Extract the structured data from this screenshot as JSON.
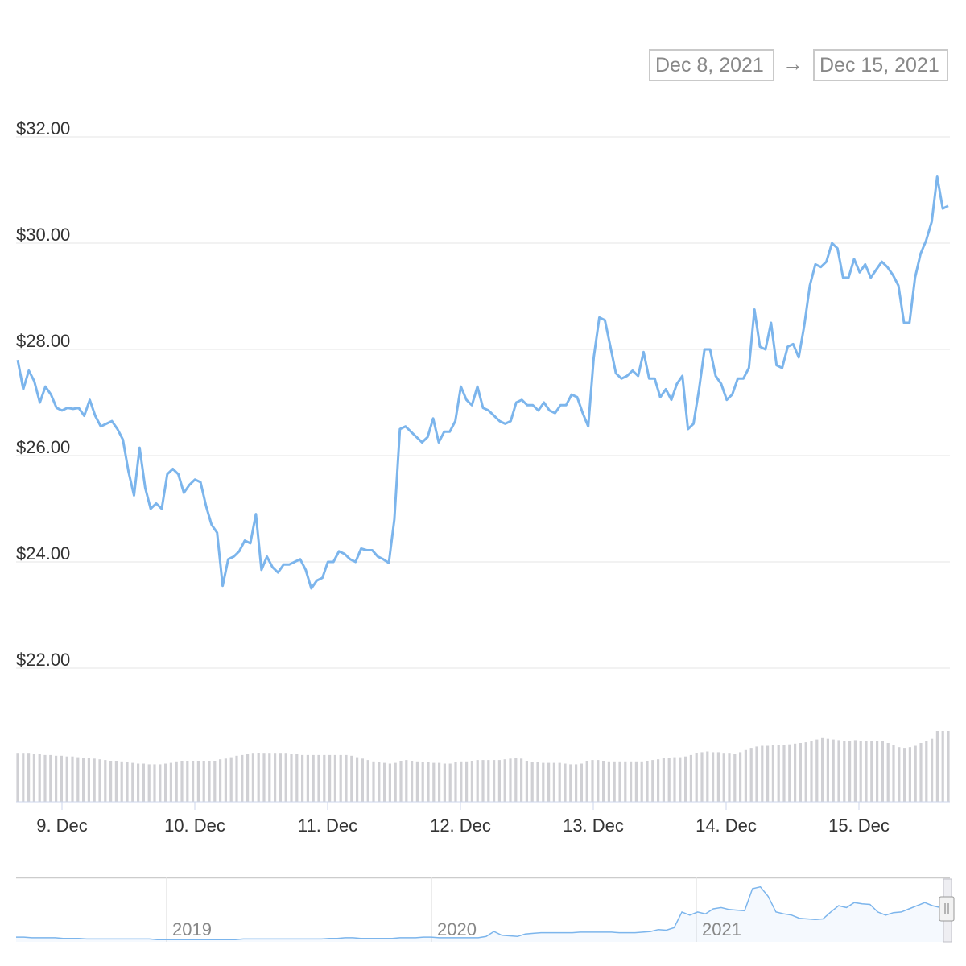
{
  "range_selector": {
    "from": "Dec 8, 2021",
    "arrow": "→",
    "to": "Dec 15, 2021"
  },
  "chart_data": {
    "type": "line",
    "title": "",
    "xlabel": "",
    "ylabel": "",
    "y_tick_labels": [
      "$22.00",
      "$24.00",
      "$26.00",
      "$28.00",
      "$30.00",
      "$32.00"
    ],
    "y_ticks": [
      22,
      24,
      26,
      28,
      30,
      32
    ],
    "ylim": [
      22,
      32
    ],
    "x_tick_labels": [
      "9. Dec",
      "10. Dec",
      "11. Dec",
      "12. Dec",
      "13. Dec",
      "14. Dec",
      "15. Dec"
    ],
    "x_ticks": [
      "2021-12-09",
      "2021-12-10",
      "2021-12-11",
      "2021-12-12",
      "2021-12-13",
      "2021-12-14",
      "2021-12-15"
    ],
    "grid": true,
    "line_color": "#7cb5ec",
    "volume_color": "#d0d0d4",
    "series": [
      {
        "values": [
          27.8,
          27.25,
          27.6,
          27.4,
          27.0,
          27.3,
          27.15,
          26.9,
          26.85,
          26.9,
          26.88,
          26.9,
          26.75,
          27.05,
          26.75,
          26.55,
          26.6,
          26.65,
          26.5,
          26.3,
          25.7,
          25.25,
          26.15,
          25.4,
          25.0,
          25.1,
          25.0,
          25.65,
          25.75,
          25.65,
          25.3,
          25.45,
          25.55,
          25.5,
          25.05,
          24.7,
          24.55,
          23.55,
          24.05,
          24.1,
          24.2,
          24.4,
          24.35,
          24.9,
          23.85,
          24.1,
          23.9,
          23.8,
          23.95,
          23.95,
          24.0,
          24.05,
          23.85,
          23.5,
          23.65,
          23.7,
          24.0,
          24.0,
          24.2,
          24.15,
          24.05,
          24.0,
          24.25,
          24.22,
          24.22,
          24.1,
          24.05,
          23.98,
          24.8,
          26.5,
          26.55,
          26.45,
          26.35,
          26.25,
          26.35,
          26.7,
          26.25,
          26.45,
          26.45,
          26.65,
          27.3,
          27.05,
          26.95,
          27.3,
          26.9,
          26.85,
          26.75,
          26.65,
          26.6,
          26.65,
          27.0,
          27.05,
          26.95,
          26.95,
          26.85,
          27.0,
          26.85,
          26.8,
          26.95,
          26.95,
          27.15,
          27.1,
          26.8,
          26.55,
          27.85,
          28.6,
          28.55,
          28.05,
          27.55,
          27.45,
          27.5,
          27.6,
          27.5,
          27.95,
          27.45,
          27.45,
          27.1,
          27.25,
          27.05,
          27.35,
          27.5,
          26.5,
          26.6,
          27.25,
          28.0,
          28.0,
          27.5,
          27.35,
          27.05,
          27.15,
          27.45,
          27.45,
          27.65,
          28.75,
          28.05,
          28.0,
          28.5,
          27.7,
          27.65,
          28.05,
          28.1,
          27.85,
          28.45,
          29.2,
          29.6,
          29.55,
          29.65,
          30.0,
          29.9,
          29.35,
          29.35,
          29.7,
          29.45,
          29.6,
          29.35,
          29.5,
          29.65,
          29.55,
          29.4,
          29.2,
          28.5,
          28.5,
          29.35,
          29.8,
          30.05,
          30.4,
          31.25,
          30.65,
          30.7
        ]
      }
    ],
    "volume": [
      0.68,
      0.68,
      0.68,
      0.67,
      0.67,
      0.66,
      0.66,
      0.65,
      0.65,
      0.64,
      0.64,
      0.63,
      0.62,
      0.62,
      0.61,
      0.6,
      0.59,
      0.58,
      0.58,
      0.57,
      0.56,
      0.55,
      0.54,
      0.54,
      0.53,
      0.53,
      0.53,
      0.54,
      0.55,
      0.57,
      0.58,
      0.58,
      0.58,
      0.58,
      0.58,
      0.58,
      0.58,
      0.6,
      0.61,
      0.63,
      0.65,
      0.66,
      0.67,
      0.68,
      0.69,
      0.68,
      0.68,
      0.68,
      0.68,
      0.68,
      0.67,
      0.67,
      0.66,
      0.66,
      0.66,
      0.66,
      0.66,
      0.66,
      0.66,
      0.66,
      0.66,
      0.65,
      0.63,
      0.61,
      0.59,
      0.57,
      0.56,
      0.55,
      0.54,
      0.55,
      0.58,
      0.59,
      0.58,
      0.57,
      0.56,
      0.56,
      0.55,
      0.55,
      0.54,
      0.54,
      0.56,
      0.57,
      0.57,
      0.58,
      0.59,
      0.59,
      0.59,
      0.59,
      0.59,
      0.6,
      0.61,
      0.62,
      0.61,
      0.58,
      0.56,
      0.56,
      0.55,
      0.55,
      0.55,
      0.55,
      0.54,
      0.53,
      0.53,
      0.54,
      0.58,
      0.59,
      0.59,
      0.58,
      0.57,
      0.57,
      0.57,
      0.57,
      0.57,
      0.57,
      0.57,
      0.58,
      0.59,
      0.6,
      0.62,
      0.62,
      0.63,
      0.63,
      0.64,
      0.66,
      0.69,
      0.7,
      0.71,
      0.7,
      0.7,
      0.68,
      0.68,
      0.67,
      0.7,
      0.73,
      0.76,
      0.78,
      0.79,
      0.79,
      0.8,
      0.8,
      0.8,
      0.81,
      0.82,
      0.83,
      0.84,
      0.86,
      0.88,
      0.9,
      0.89,
      0.88,
      0.87,
      0.86,
      0.86,
      0.87,
      0.86,
      0.86,
      0.86,
      0.86,
      0.86,
      0.83,
      0.8,
      0.77,
      0.76,
      0.77,
      0.79,
      0.83,
      0.86,
      0.89,
      1.0,
      1.0,
      1.0
    ]
  },
  "navigator": {
    "year_labels": [
      "2019",
      "2020",
      "2021"
    ],
    "line_color": "#7cb5ec",
    "values": [
      0.05,
      0.05,
      0.04,
      0.04,
      0.04,
      0.04,
      0.03,
      0.03,
      0.03,
      0.02,
      0.02,
      0.02,
      0.02,
      0.02,
      0.02,
      0.02,
      0.02,
      0.02,
      0.01,
      0.01,
      0.01,
      0.01,
      0.01,
      0.01,
      0.01,
      0.01,
      0.01,
      0.01,
      0.01,
      0.02,
      0.02,
      0.02,
      0.02,
      0.02,
      0.02,
      0.02,
      0.02,
      0.02,
      0.02,
      0.02,
      0.03,
      0.03,
      0.04,
      0.04,
      0.03,
      0.03,
      0.03,
      0.03,
      0.03,
      0.04,
      0.04,
      0.04,
      0.05,
      0.05,
      0.04,
      0.04,
      0.04,
      0.04,
      0.04,
      0.04,
      0.06,
      0.14,
      0.08,
      0.07,
      0.06,
      0.1,
      0.11,
      0.12,
      0.12,
      0.12,
      0.12,
      0.12,
      0.13,
      0.13,
      0.13,
      0.13,
      0.13,
      0.12,
      0.12,
      0.12,
      0.13,
      0.14,
      0.17,
      0.16,
      0.2,
      0.45,
      0.4,
      0.45,
      0.42,
      0.5,
      0.52,
      0.49,
      0.48,
      0.47,
      0.82,
      0.85,
      0.7,
      0.45,
      0.42,
      0.4,
      0.35,
      0.34,
      0.33,
      0.34,
      0.45,
      0.55,
      0.52,
      0.6,
      0.58,
      0.57,
      0.45,
      0.4,
      0.44,
      0.45,
      0.5,
      0.55,
      0.6,
      0.55,
      0.52,
      0.58
    ]
  }
}
